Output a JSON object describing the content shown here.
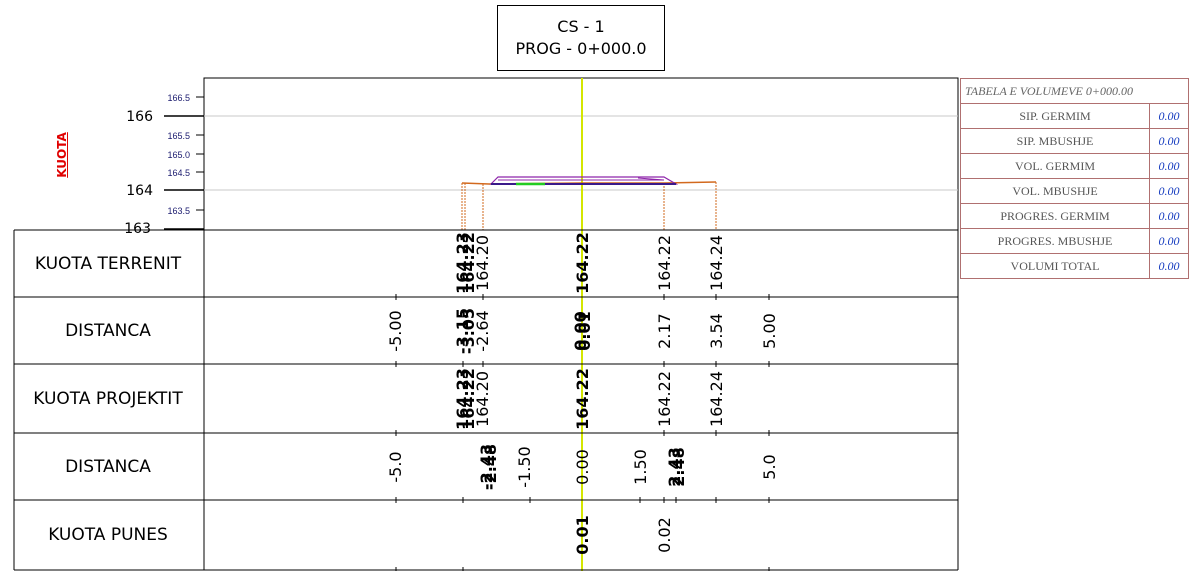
{
  "header": {
    "line1": "CS - 1",
    "line2": "PROG - 0+000.0"
  },
  "axis_label": "KUOTA",
  "y_axis": {
    "major_ticks": [
      "166",
      "164",
      "163"
    ],
    "minor_ticks": [
      "166.5",
      "165.5",
      "165.0",
      "164.5",
      "163.5"
    ]
  },
  "rows": [
    {
      "label": "KUOTA TERRENIT"
    },
    {
      "label": "DISTANCA"
    },
    {
      "label": "KUOTA PROJEKTIT"
    },
    {
      "label": "DISTANCA"
    },
    {
      "label": "KUOTA PUNES"
    }
  ],
  "row_values": {
    "kuota_terrenit": [
      "164.23",
      "164.22",
      "164.20",
      "164.22",
      "164.22",
      "164.24"
    ],
    "distanca_1": [
      "-5.00",
      "-3.15",
      "-3.05",
      "-2.64",
      "0.00",
      "0.01",
      "2.17",
      "3.54",
      "5.00"
    ],
    "kuota_projektit": [
      "164.23",
      "164.22",
      "164.20",
      "164.22",
      "164.22",
      "164.24"
    ],
    "distanca_2": [
      "-5.0",
      "-2.43",
      "-2.48",
      "-1.50",
      "0.00",
      "1.50",
      "2.43",
      "2.48",
      "5.0"
    ],
    "kuota_punes": [
      "0.01",
      "0.02"
    ]
  },
  "volume_table": {
    "title": "TABELA E VOLUMEVE 0+000.00",
    "rows": [
      {
        "name": "SIP. GERMIM",
        "value": "0.00"
      },
      {
        "name": "SIP. MBUSHJE",
        "value": "0.00"
      },
      {
        "name": "VOL. GERMIM",
        "value": "0.00"
      },
      {
        "name": "VOL. MBUSHJE",
        "value": "0.00"
      },
      {
        "name": "PROGRES. GERMIM",
        "value": "0.00"
      },
      {
        "name": "PROGRES. MBUSHJE",
        "value": "0.00"
      },
      {
        "name": "VOLUMI TOTAL",
        "value": "0.00"
      }
    ]
  },
  "colors": {
    "axis_text": "#1a1a6e",
    "terrain": "#d2691e",
    "design": "#6a1b9a",
    "centerline": "#d4e600",
    "fill_marker": "#22cc22"
  }
}
